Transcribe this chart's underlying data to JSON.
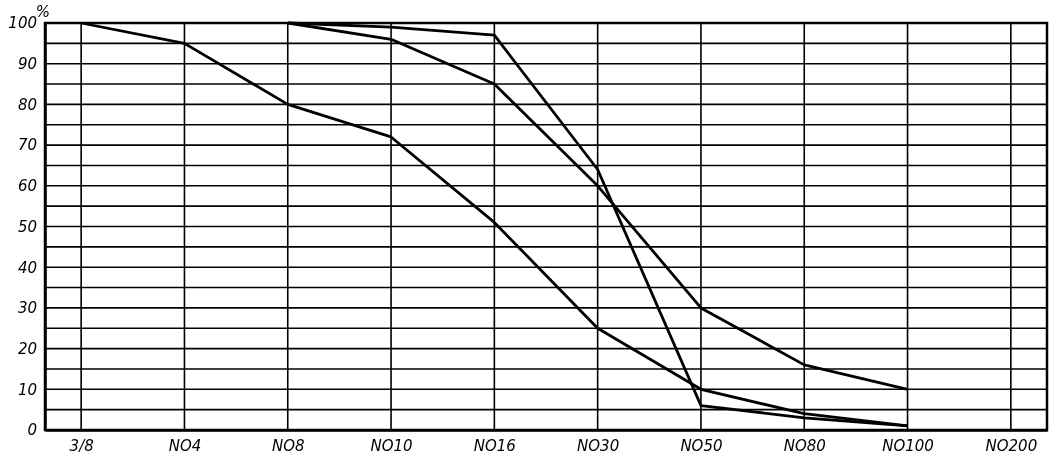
{
  "chart_data": {
    "type": "line",
    "ylabel": "%",
    "categories": [
      "3/8",
      "NO4",
      "NO8",
      "NO10",
      "NO16",
      "NO30",
      "NO50",
      "NO80",
      "NO100",
      "NO200"
    ],
    "ylim": [
      0,
      100
    ],
    "yticks": [
      0,
      {
        "value": 5,
        "label": null
      },
      10,
      {
        "value": 15,
        "label": null
      },
      20,
      {
        "value": 25,
        "label": null
      },
      30,
      {
        "value": 35,
        "label": null
      },
      40,
      {
        "value": 45,
        "label": null
      },
      50,
      {
        "value": 55,
        "label": null
      },
      60,
      {
        "value": 65,
        "label": null
      },
      70,
      {
        "value": 75,
        "label": null
      },
      80,
      {
        "value": 85,
        "label": null
      },
      90,
      {
        "value": 95,
        "label": null
      },
      100
    ],
    "grid": true,
    "marker": "none",
    "line_style": "solid",
    "series": [
      {
        "color": "#000000",
        "values": [
          100,
          95,
          80,
          72,
          51,
          25,
          10,
          4,
          1,
          null
        ]
      },
      {
        "color": "#000000",
        "values": [
          null,
          null,
          100,
          96,
          85,
          60,
          30,
          16,
          10,
          null
        ]
      },
      {
        "color": "#000000",
        "values": [
          null,
          null,
          100,
          99,
          97,
          64,
          6,
          3,
          1,
          null
        ]
      }
    ]
  }
}
